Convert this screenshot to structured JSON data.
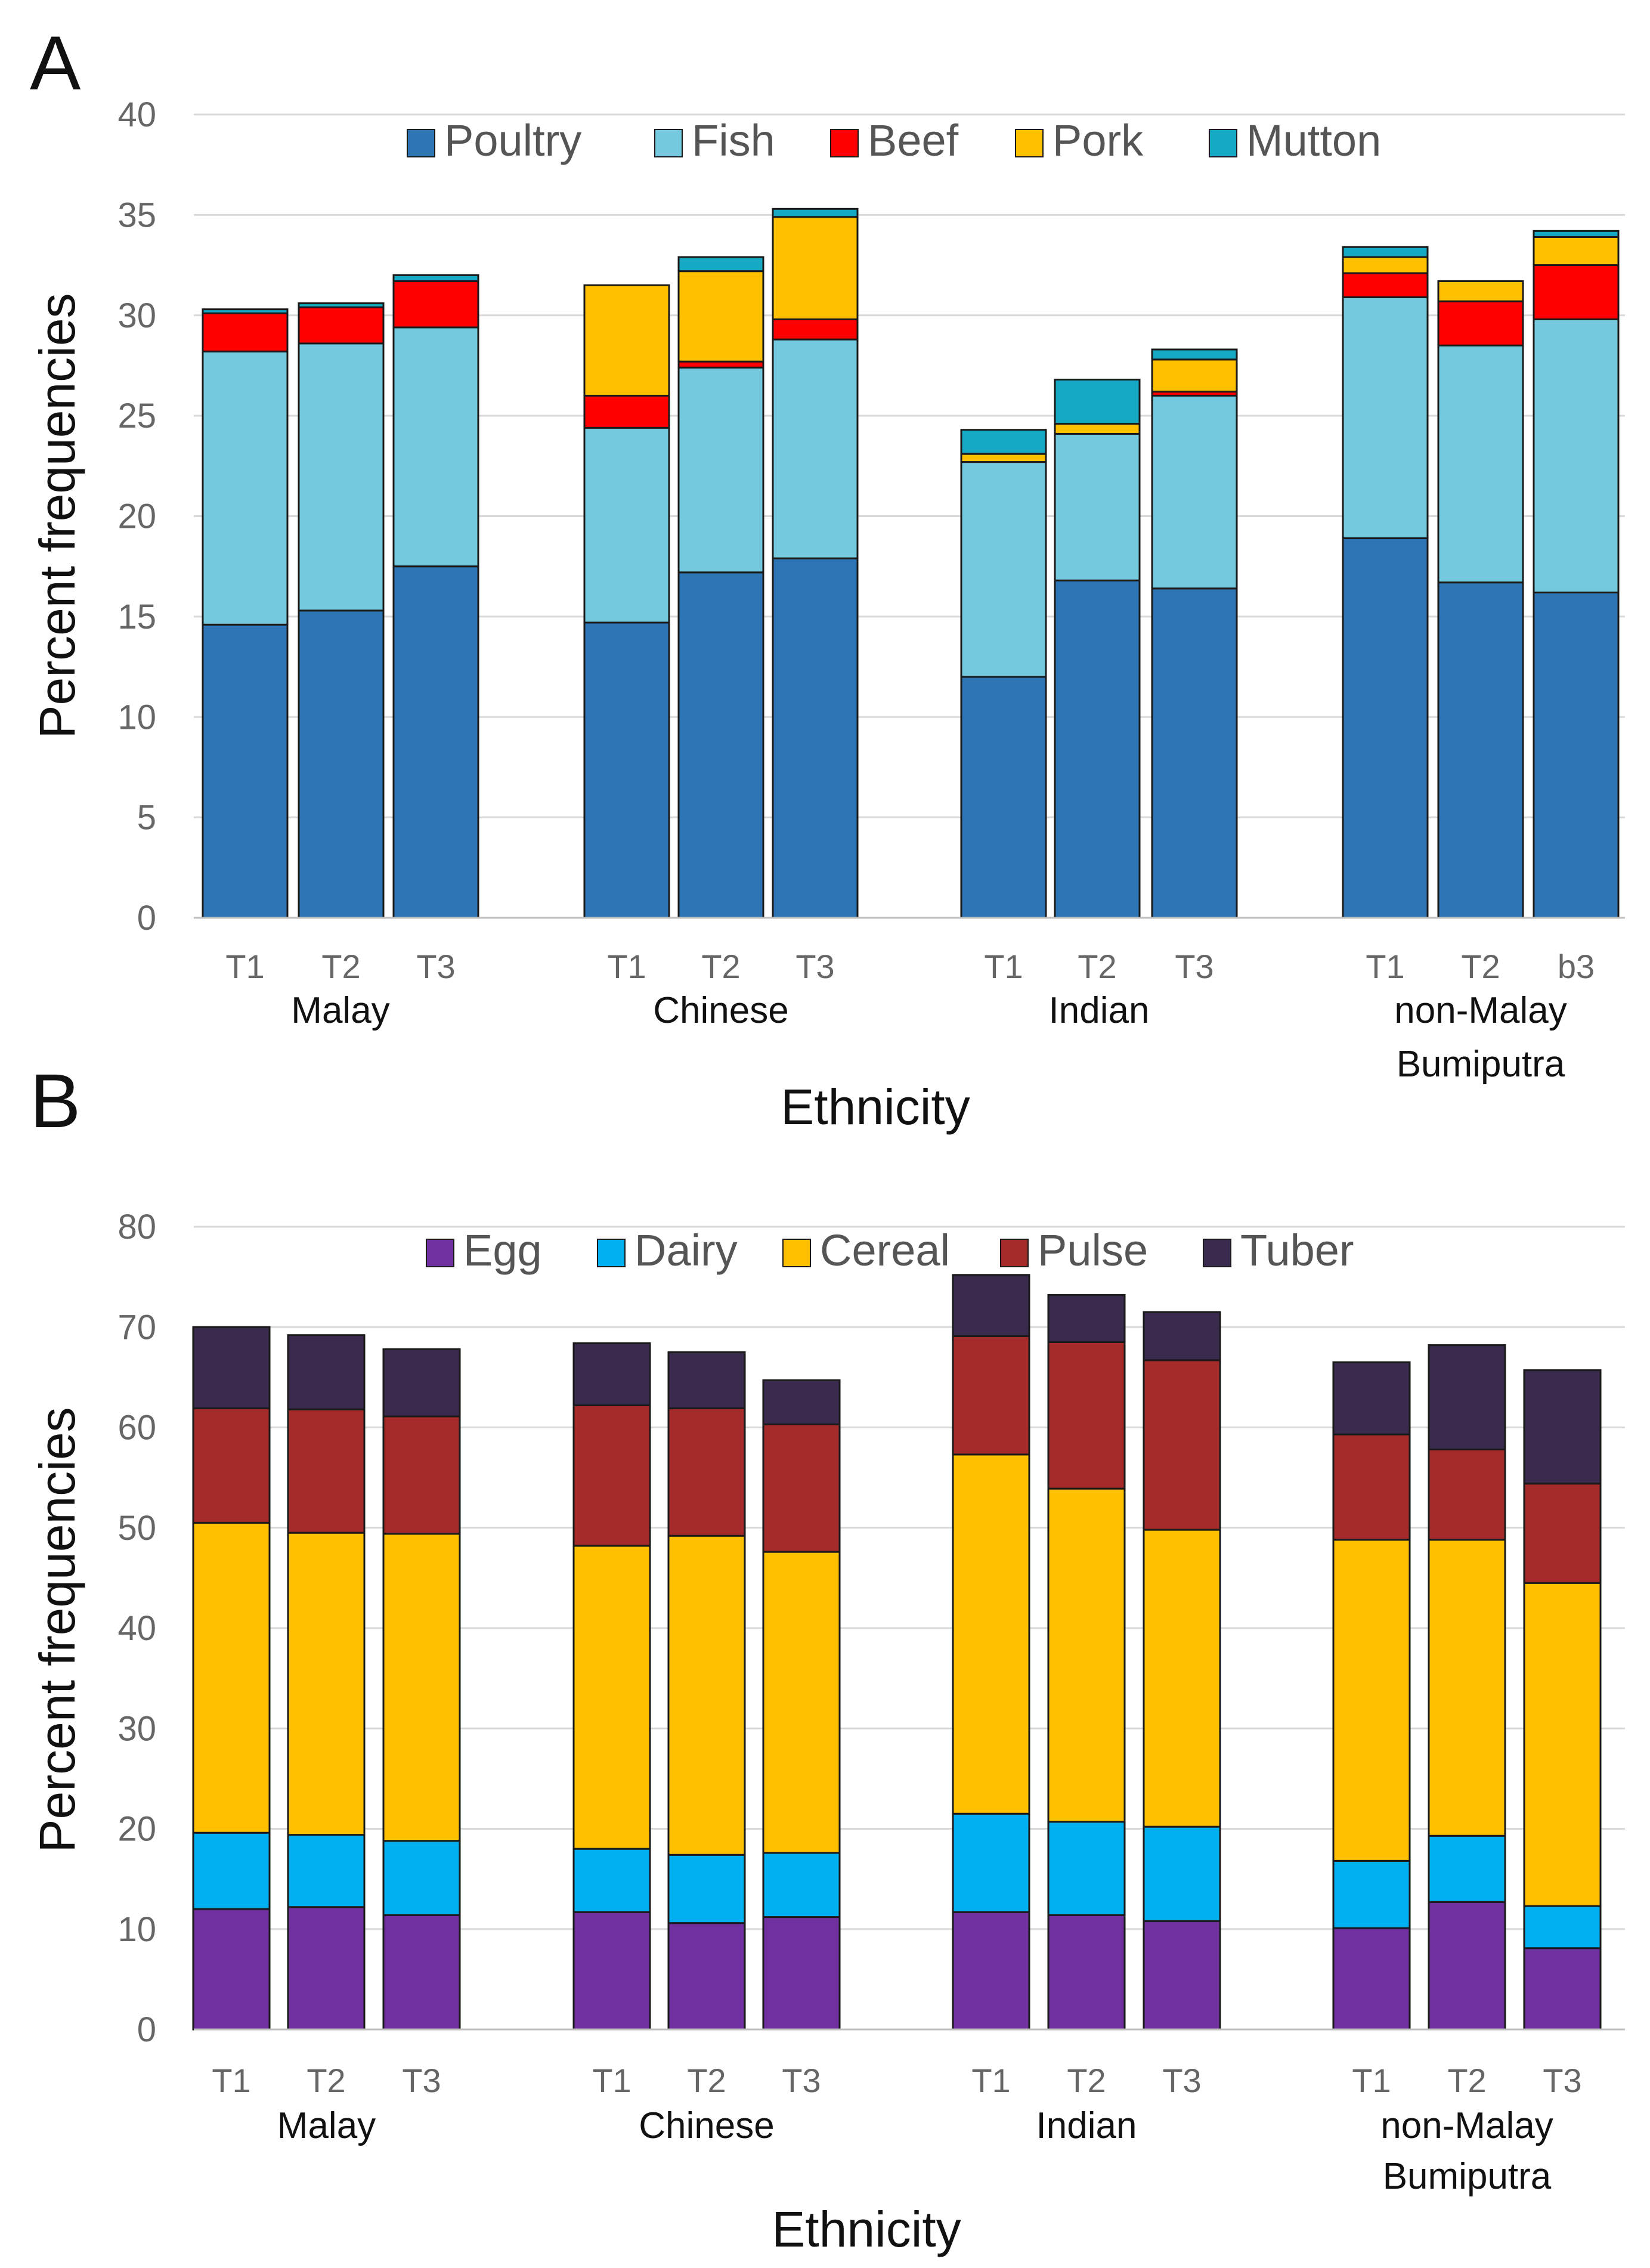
{
  "chart_data": [
    {
      "panel": "A",
      "type": "bar",
      "stacked": true,
      "ylabel": "Percent frequencies",
      "xlabel": "Ethnicity",
      "ylim": [
        0,
        40
      ],
      "yticks": [
        0,
        5,
        10,
        15,
        20,
        25,
        30,
        35,
        40
      ],
      "grid": true,
      "legend_position": "top",
      "groups": [
        {
          "name": "Malay",
          "name_lines": [
            "Malay"
          ],
          "bars": [
            "T1",
            "T2",
            "T3"
          ]
        },
        {
          "name": "Chinese",
          "name_lines": [
            "Chinese"
          ],
          "bars": [
            "T1",
            "T2",
            "T3"
          ]
        },
        {
          "name": "Indian",
          "name_lines": [
            "Indian"
          ],
          "bars": [
            "T1",
            "T2",
            "T3"
          ]
        },
        {
          "name": "non-Malay Bumiputra",
          "name_lines": [
            "non-Malay",
            "Bumiputra"
          ],
          "bars": [
            "T1",
            "T2",
            "b3"
          ]
        }
      ],
      "series": [
        {
          "name": "Poultry",
          "color": "#2E75B6",
          "values": [
            14.6,
            15.3,
            17.5,
            14.7,
            17.2,
            17.9,
            12.0,
            16.8,
            16.4,
            18.9,
            16.7,
            16.2
          ]
        },
        {
          "name": "Fish",
          "color": "#74C9DF",
          "values": [
            13.6,
            13.3,
            11.9,
            9.7,
            10.2,
            10.9,
            10.7,
            7.3,
            9.6,
            12.0,
            11.8,
            13.6
          ]
        },
        {
          "name": "Beef",
          "color": "#FF0000",
          "values": [
            1.9,
            1.8,
            2.3,
            1.6,
            0.3,
            1.0,
            0.0,
            0.0,
            0.2,
            1.2,
            2.2,
            2.7
          ]
        },
        {
          "name": "Pork",
          "color": "#FFC000",
          "values": [
            0.0,
            0.0,
            0.0,
            5.5,
            4.5,
            5.1,
            0.4,
            0.5,
            1.6,
            0.8,
            1.0,
            1.4
          ]
        },
        {
          "name": "Mutton",
          "color": "#17A9C3",
          "values": [
            0.2,
            0.2,
            0.3,
            0.0,
            0.7,
            0.4,
            1.2,
            2.2,
            0.5,
            0.5,
            0.0,
            0.3
          ]
        }
      ]
    },
    {
      "panel": "B",
      "type": "bar",
      "stacked": true,
      "ylabel": "Percent frequencies",
      "xlabel": "Ethnicity",
      "ylim": [
        0,
        80
      ],
      "yticks": [
        0,
        10,
        20,
        30,
        40,
        50,
        60,
        70,
        80
      ],
      "grid": true,
      "legend_position": "top",
      "groups": [
        {
          "name": "Malay",
          "name_lines": [
            "Malay"
          ],
          "bars": [
            "T1",
            "T2",
            "T3"
          ]
        },
        {
          "name": "Chinese",
          "name_lines": [
            "Chinese"
          ],
          "bars": [
            "T1",
            "T2",
            "T3"
          ]
        },
        {
          "name": "Indian",
          "name_lines": [
            "Indian"
          ],
          "bars": [
            "T1",
            "T2",
            "T3"
          ]
        },
        {
          "name": "non-Malay Bumiputra",
          "name_lines": [
            "non-Malay",
            "Bumiputra"
          ],
          "bars": [
            "T1",
            "T2",
            "T3"
          ]
        }
      ],
      "series": [
        {
          "name": "Egg",
          "color": "#7030A0",
          "values": [
            12.0,
            12.2,
            11.4,
            11.7,
            10.6,
            11.2,
            11.7,
            11.4,
            10.8,
            10.1,
            12.7,
            8.1
          ]
        },
        {
          "name": "Dairy",
          "color": "#00B0F0",
          "values": [
            7.6,
            7.2,
            7.4,
            6.3,
            6.8,
            6.4,
            9.8,
            9.3,
            9.4,
            6.7,
            6.6,
            4.2
          ]
        },
        {
          "name": "Cereal",
          "color": "#FFC000",
          "values": [
            30.9,
            30.1,
            30.6,
            30.2,
            31.8,
            30.0,
            35.8,
            33.2,
            29.6,
            32.0,
            29.5,
            32.2
          ]
        },
        {
          "name": "Pulse",
          "color": "#A52A2A",
          "values": [
            11.4,
            12.3,
            11.7,
            14.0,
            12.7,
            12.7,
            11.8,
            14.6,
            16.9,
            10.5,
            9.0,
            9.9
          ]
        },
        {
          "name": "Tuber",
          "color": "#3A2A4E",
          "values": [
            8.1,
            7.4,
            6.7,
            6.2,
            5.6,
            4.4,
            6.1,
            4.7,
            4.8,
            7.2,
            10.4,
            11.3
          ]
        }
      ]
    }
  ]
}
